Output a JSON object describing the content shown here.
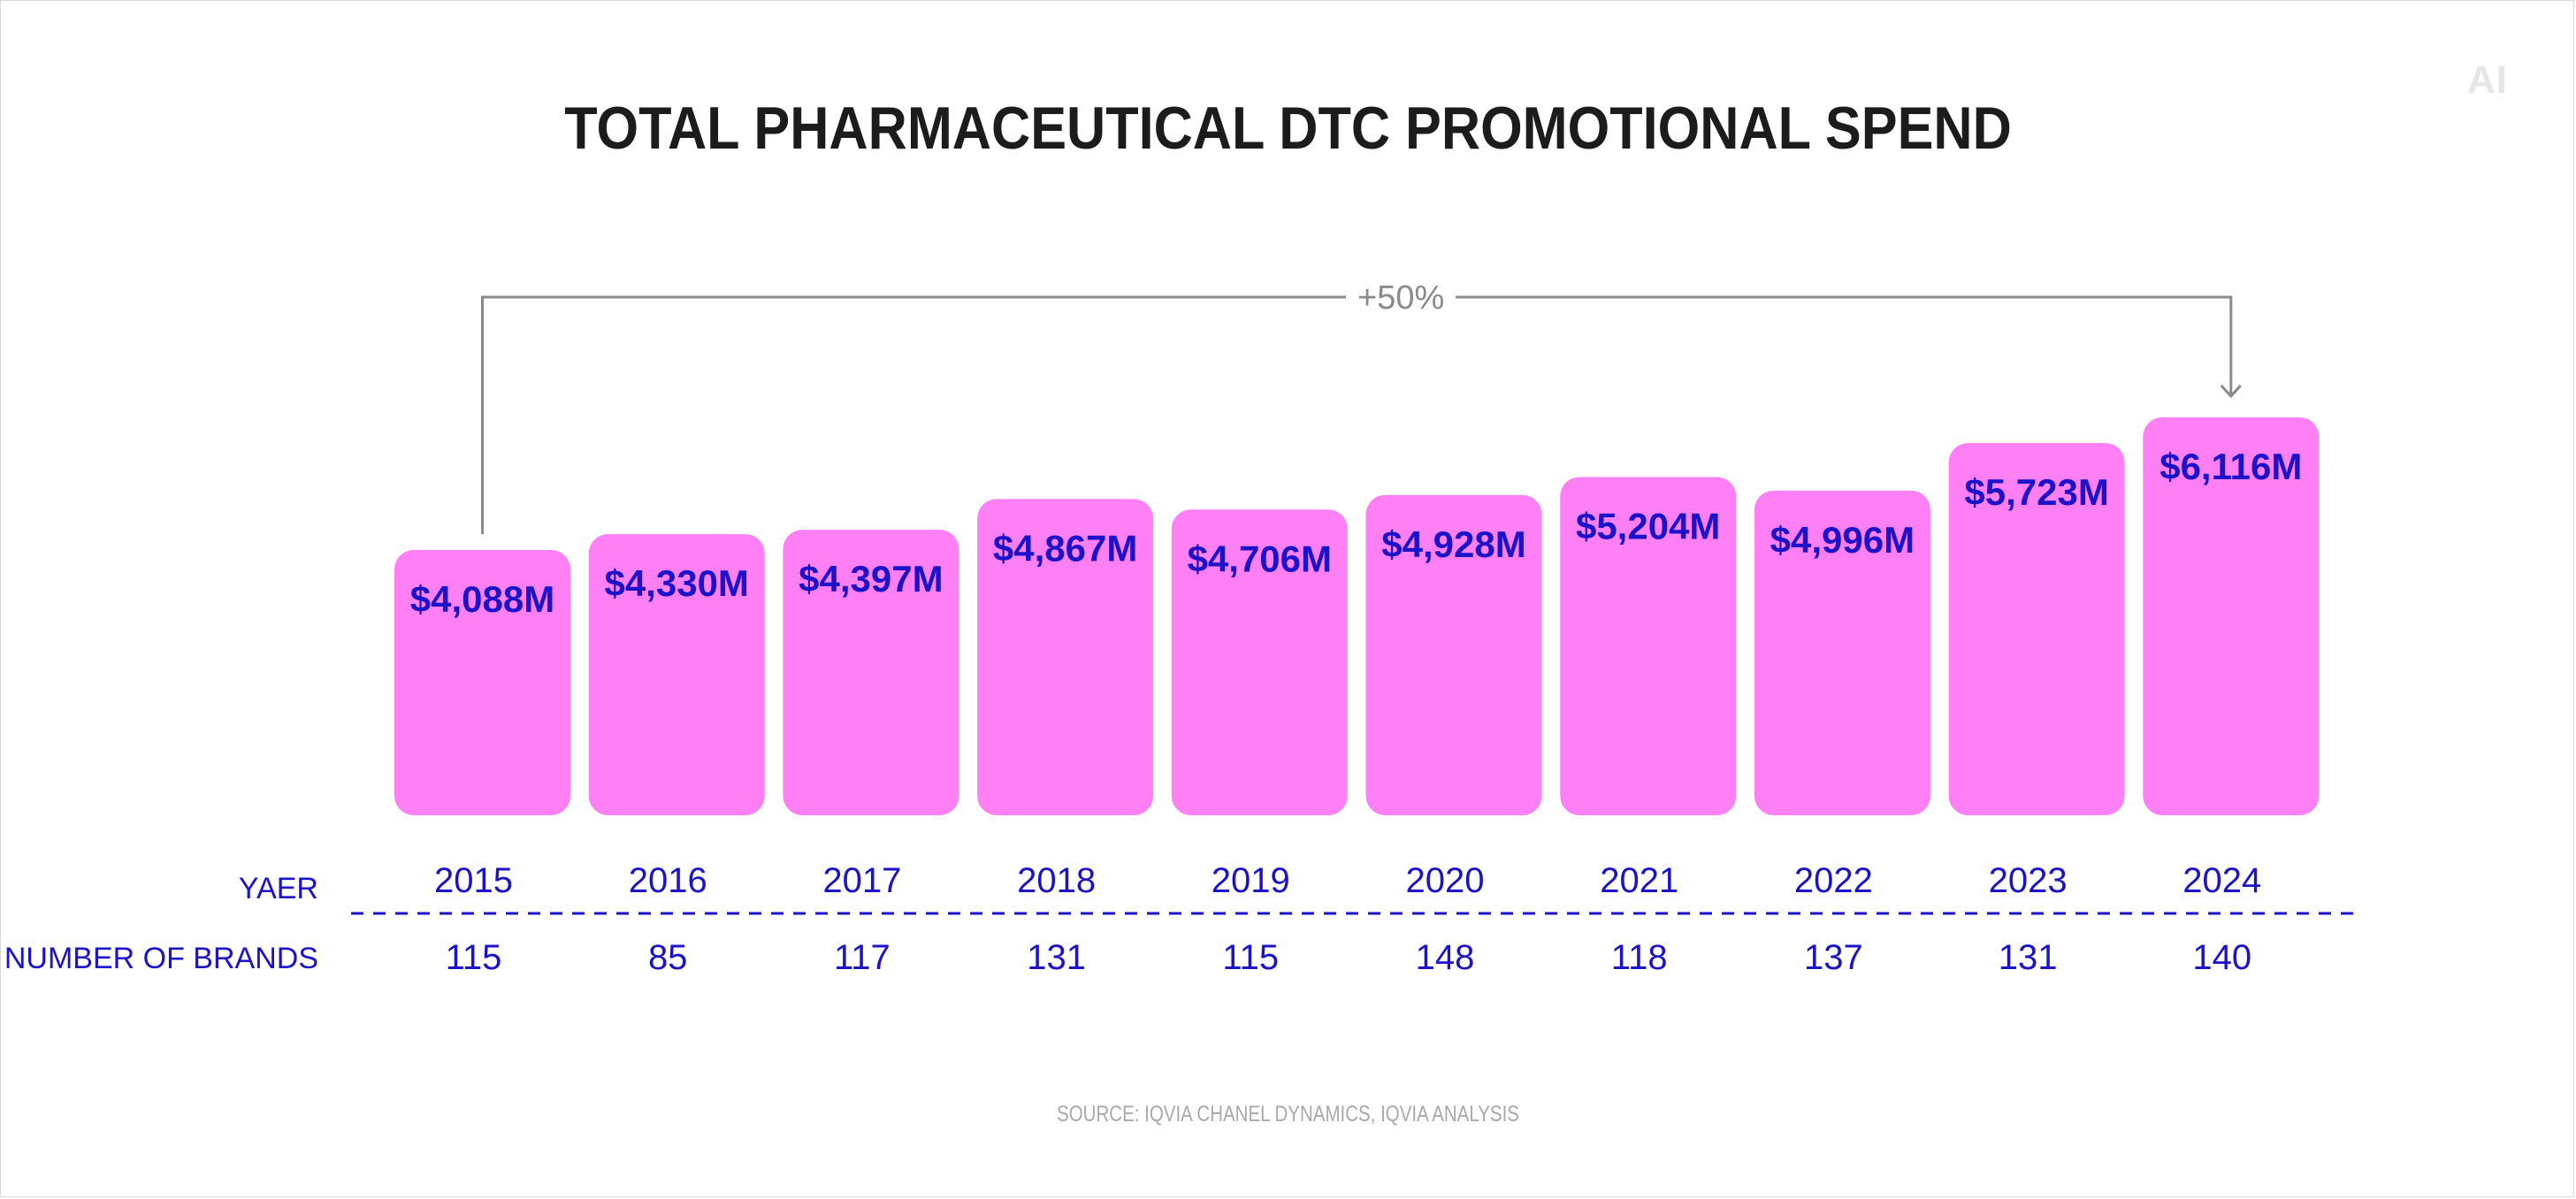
{
  "logo": "AI",
  "source": "SOURCE: IQVIA CHANEL DYNAMICS, IQVIA ANALYSIS",
  "colors": {
    "bar": "#ff80f4",
    "label": "#1b12c9",
    "bracket": "#8a8a8a"
  },
  "chart_data": {
    "type": "bar",
    "title": "TOTAL PHARMACEUTICAL DTC PROMOTIONAL SPEND",
    "categories": [
      "2015",
      "2016",
      "2017",
      "2018",
      "2019",
      "2020",
      "2021",
      "2022",
      "2023",
      "2024"
    ],
    "values": [
      4088,
      4330,
      4397,
      4867,
      4706,
      4928,
      5204,
      4996,
      5723,
      6116
    ],
    "value_labels": [
      "$4,088M",
      "$4,330M",
      "$4,397M",
      "$4,867M",
      "$4,706M",
      "$4,928M",
      "$5,204M",
      "$4,996M",
      "$5,723M",
      "$6,116M"
    ],
    "unit": "$M",
    "row_headers": {
      "year": "YAER",
      "brands": "NUMBER OF BRANDS"
    },
    "brands": [
      "115",
      "85",
      "117",
      "131",
      "115",
      "148",
      "118",
      "137",
      "131",
      "140"
    ],
    "annotation": {
      "text": "+50%",
      "from": "2015",
      "to": "2024"
    },
    "grid": false,
    "legend": "none"
  }
}
